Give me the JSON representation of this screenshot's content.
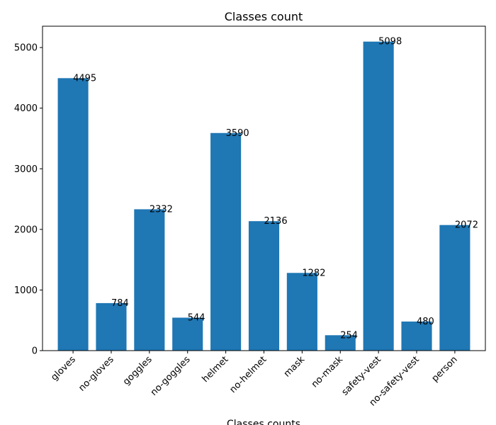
{
  "chart_data": {
    "type": "bar",
    "title": "Classes count",
    "xlabel": "Classes counts",
    "ylabel": "",
    "categories": [
      "gloves",
      "no-gloves",
      "goggles",
      "no-goggles",
      "helmet",
      "no-helmet",
      "mask",
      "no-mask",
      "safety-vest",
      "no-safety-vest",
      "person"
    ],
    "values": [
      4495,
      784,
      2332,
      544,
      3590,
      2136,
      1282,
      254,
      5098,
      480,
      2072
    ],
    "ylim": [
      0,
      5352
    ],
    "yticks": [
      0,
      1000,
      2000,
      3000,
      4000,
      5000
    ],
    "grid": false,
    "bar_color": "#1f77b4"
  }
}
